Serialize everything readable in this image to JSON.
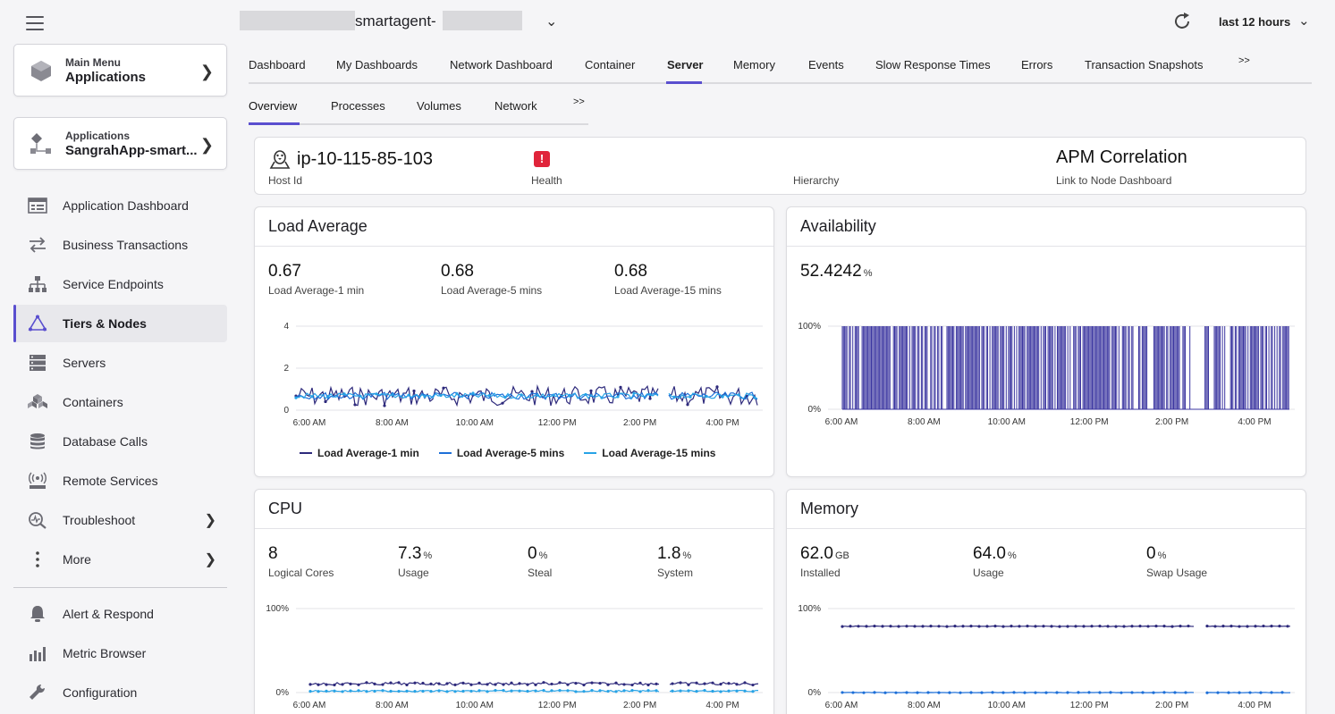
{
  "header": {
    "app_title": "smartagent-",
    "time_range": "last 12 hours"
  },
  "sidebar": {
    "main_menu": {
      "small": "Main Menu",
      "big": "Applications"
    },
    "app_card": {
      "small": "Applications",
      "big": "SangrahApp-smart..."
    },
    "items": [
      {
        "label": "Application Dashboard",
        "icon": "dashboard-icon"
      },
      {
        "label": "Business Transactions",
        "icon": "transactions-icon"
      },
      {
        "label": "Service Endpoints",
        "icon": "endpoints-icon"
      },
      {
        "label": "Tiers & Nodes",
        "icon": "tiers-nodes-icon",
        "active": true
      },
      {
        "label": "Servers",
        "icon": "servers-icon"
      },
      {
        "label": "Containers",
        "icon": "containers-icon"
      },
      {
        "label": "Database Calls",
        "icon": "database-icon"
      },
      {
        "label": "Remote Services",
        "icon": "remote-services-icon"
      },
      {
        "label": "Troubleshoot",
        "icon": "troubleshoot-icon"
      },
      {
        "label": "More",
        "icon": "more-icon"
      }
    ],
    "bottom_items": [
      {
        "label": "Alert & Respond",
        "icon": "bell-icon"
      },
      {
        "label": "Metric Browser",
        "icon": "bar-chart-icon"
      },
      {
        "label": "Configuration",
        "icon": "wrench-icon"
      }
    ]
  },
  "tabs": [
    "Dashboard",
    "My Dashboards",
    "Network Dashboard",
    "Container",
    "Server",
    "Memory",
    "Events",
    "Slow Response Times",
    "Errors",
    "Transaction Snapshots",
    ">>"
  ],
  "active_tab": "Server",
  "subtabs": [
    "Overview",
    "Processes",
    "Volumes",
    "Network",
    ">>"
  ],
  "active_subtab": "Overview",
  "host": {
    "host_id_value": "ip-10-115-85-103",
    "host_id_label": "Host Id",
    "health_label": "Health",
    "hierarchy_label": "Hierarchy",
    "apm_title": "APM Correlation",
    "apm_link": "Link to Node Dashboard",
    "health_status_color": "#e0243a"
  },
  "load_average": {
    "title": "Load Average",
    "metrics": [
      {
        "value": "0.67",
        "label": "Load Average-1 min"
      },
      {
        "value": "0.68",
        "label": "Load Average-5 mins"
      },
      {
        "value": "0.68",
        "label": "Load Average-15 mins"
      }
    ]
  },
  "availability": {
    "title": "Availability",
    "value": "52.4242",
    "unit": "%"
  },
  "cpu": {
    "title": "CPU",
    "metrics": [
      {
        "value": "8",
        "unit": "",
        "label": "Logical Cores"
      },
      {
        "value": "7.3",
        "unit": "%",
        "label": "Usage"
      },
      {
        "value": "0",
        "unit": "%",
        "label": "Steal"
      },
      {
        "value": "1.8",
        "unit": "%",
        "label": "System"
      }
    ]
  },
  "memory": {
    "title": "Memory",
    "metrics": [
      {
        "value": "62.0",
        "unit": "GB",
        "label": "Installed"
      },
      {
        "value": "64.0",
        "unit": "%",
        "label": "Usage"
      },
      {
        "value": "0",
        "unit": "%",
        "label": "Swap Usage"
      }
    ]
  },
  "chart_data": [
    {
      "type": "line",
      "x_ticks": [
        "6:00 AM",
        "8:00 AM",
        "10:00 AM",
        "12:00 PM",
        "2:00 PM",
        "4:00 PM"
      ],
      "ylim": [
        0,
        4
      ],
      "y_ticks": [
        "0",
        "2",
        "4"
      ],
      "series": [
        {
          "name": "Load Average-1 min",
          "color": "#2e2a7c",
          "level": 0.67
        },
        {
          "name": "Load Average-5 mins",
          "color": "#1d6fd8",
          "level": 0.68
        },
        {
          "name": "Load Average-15 mins",
          "color": "#27a3e6",
          "level": 0.68
        }
      ],
      "gap_at": [
        "3:15 PM"
      ]
    },
    {
      "type": "bar",
      "x_ticks": [
        "6:00 AM",
        "8:00 AM",
        "10:00 AM",
        "12:00 PM",
        "2:00 PM",
        "4:00 PM"
      ],
      "y_ticks": [
        "0%",
        "100%"
      ],
      "color": "#3b35a0",
      "value": 52.4242
    },
    {
      "type": "line",
      "x_ticks": [
        "6:00 AM",
        "8:00 AM",
        "10:00 AM",
        "12:00 PM",
        "2:00 PM",
        "4:00 PM"
      ],
      "y_ticks": [
        "0%",
        "100%"
      ],
      "series": [
        {
          "name": "Usage",
          "color": "#2e2a7c",
          "level": 7.3
        },
        {
          "name": "System",
          "color": "#27a3e6",
          "level": 1.8
        }
      ]
    },
    {
      "type": "line",
      "x_ticks": [
        "6:00 AM",
        "8:00 AM",
        "10:00 AM",
        "12:00 PM",
        "2:00 PM",
        "4:00 PM"
      ],
      "y_ticks": [
        "0%",
        "100%"
      ],
      "series": [
        {
          "name": "Usage",
          "color": "#2e2a7c",
          "level": 64.0
        },
        {
          "name": "Swap Usage",
          "color": "#1d6fd8",
          "level": 0
        }
      ]
    }
  ]
}
